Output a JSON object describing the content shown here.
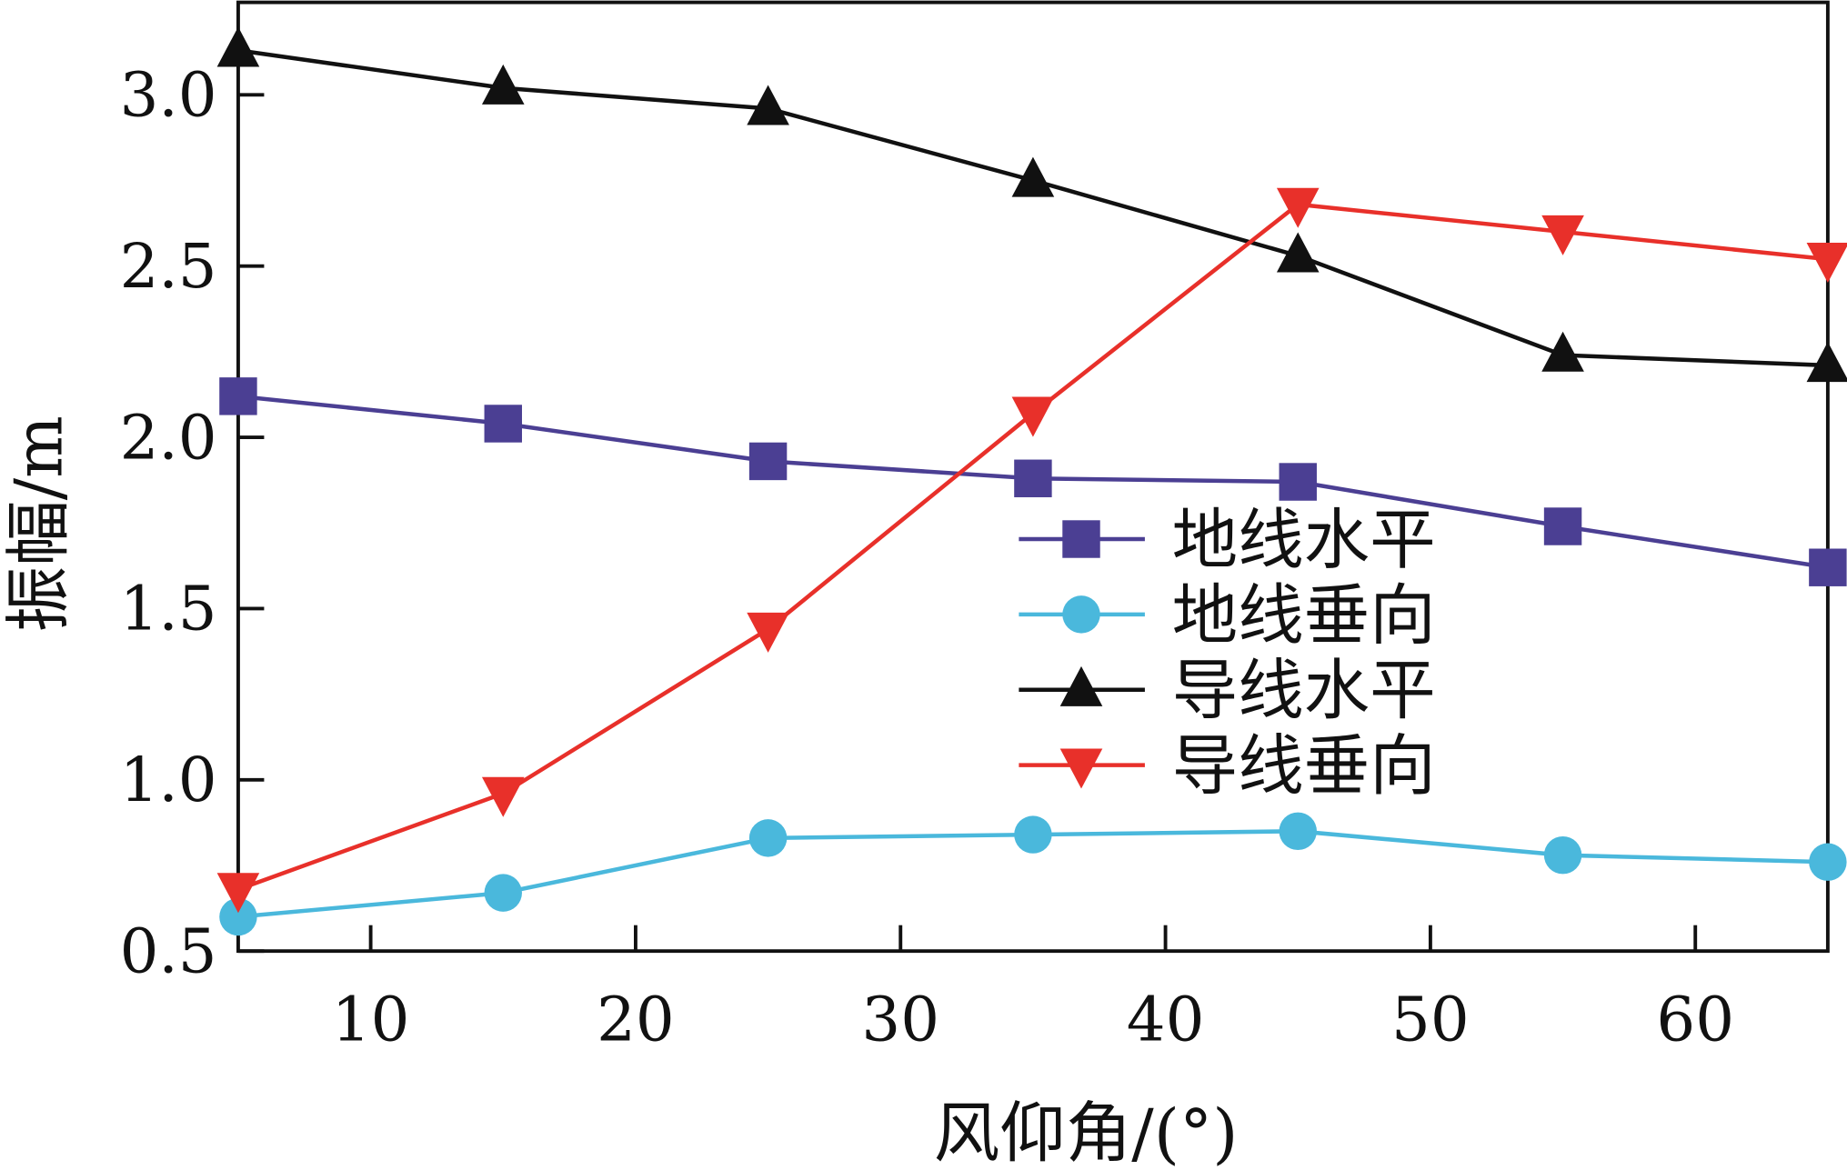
{
  "chart_data": {
    "type": "line",
    "title": "",
    "xlabel": "风仰角/(°)",
    "ylabel": "振幅/m",
    "xlim": [
      5,
      65
    ],
    "ylim": [
      0.5,
      3.27
    ],
    "xticks": [
      10,
      20,
      30,
      40,
      50,
      60
    ],
    "xtick_labels": [
      "10",
      "20",
      "30",
      "40",
      "50",
      "60"
    ],
    "yticks": [
      0.5,
      1.0,
      1.5,
      2.0,
      2.5,
      3.0
    ],
    "ytick_labels": [
      "0.5",
      "1.0",
      "1.5",
      "2.0",
      "2.5",
      "3.0"
    ],
    "grid": false,
    "legend_position": "center-right",
    "x": [
      5,
      15,
      25,
      35,
      45,
      55,
      65
    ],
    "series": [
      {
        "name": "地线水平",
        "color": "#4b3f93",
        "marker": "square",
        "values": [
          2.12,
          2.04,
          1.93,
          1.88,
          1.87,
          1.74,
          1.62
        ]
      },
      {
        "name": "地线垂向",
        "color": "#4ab8dc",
        "marker": "circle",
        "values": [
          0.6,
          0.67,
          0.83,
          0.84,
          0.85,
          0.78,
          0.76
        ]
      },
      {
        "name": "导线水平",
        "color": "#111111",
        "marker": "triangle-up",
        "values": [
          3.13,
          3.02,
          2.96,
          2.75,
          2.53,
          2.24,
          2.21
        ]
      },
      {
        "name": "导线垂向",
        "color": "#e8302a",
        "marker": "triangle-down",
        "values": [
          0.68,
          0.96,
          1.44,
          2.07,
          2.68,
          2.6,
          2.52
        ]
      }
    ]
  }
}
